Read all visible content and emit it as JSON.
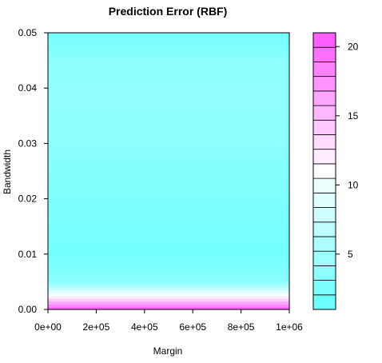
{
  "chart_data": {
    "type": "heatmap",
    "title": "Prediction Error (RBF)",
    "xlabel": "Margin",
    "ylabel": "Bandwidth",
    "xlim": [
      0,
      1000000
    ],
    "ylim": [
      0,
      0.05
    ],
    "x_ticks": [
      {
        "value": 0,
        "label": "0e+00"
      },
      {
        "value": 200000,
        "label": "2e+05"
      },
      {
        "value": 400000,
        "label": "4e+05"
      },
      {
        "value": 600000,
        "label": "6e+05"
      },
      {
        "value": 800000,
        "label": "8e+05"
      },
      {
        "value": 1000000,
        "label": "1e+06"
      }
    ],
    "y_ticks": [
      {
        "value": 0.0,
        "label": "0.00"
      },
      {
        "value": 0.01,
        "label": "0.01"
      },
      {
        "value": 0.02,
        "label": "0.02"
      },
      {
        "value": 0.03,
        "label": "0.03"
      },
      {
        "value": 0.04,
        "label": "0.04"
      },
      {
        "value": 0.05,
        "label": "0.05"
      }
    ],
    "colorbar": {
      "min": 1,
      "max": 21,
      "levels": 19,
      "low_color": "#66ffff",
      "mid_color": "#ffffff",
      "high_color": "#ff55ff",
      "ticks": [
        {
          "value": 5,
          "label": "5"
        },
        {
          "value": 10,
          "label": "10"
        },
        {
          "value": 15,
          "label": "15"
        },
        {
          "value": 20,
          "label": "20"
        }
      ]
    },
    "bandwidth_rows": [
      {
        "bandwidth": 0.0,
        "error": 21.0
      },
      {
        "bandwidth": 0.0005,
        "error": 19.0
      },
      {
        "bandwidth": 0.001,
        "error": 17.0
      },
      {
        "bandwidth": 0.0015,
        "error": 15.0
      },
      {
        "bandwidth": 0.002,
        "error": 13.0
      },
      {
        "bandwidth": 0.0025,
        "error": 11.0
      },
      {
        "bandwidth": 0.003,
        "error": 9.5
      },
      {
        "bandwidth": 0.0035,
        "error": 8.0
      },
      {
        "bandwidth": 0.004,
        "error": 6.5
      },
      {
        "bandwidth": 0.0045,
        "error": 5.0
      },
      {
        "bandwidth": 0.005,
        "error": 3.5
      },
      {
        "bandwidth": 0.01,
        "error": 2.0
      },
      {
        "bandwidth": 0.015,
        "error": 2.3
      },
      {
        "bandwidth": 0.02,
        "error": 2.7
      },
      {
        "bandwidth": 0.025,
        "error": 3.1
      },
      {
        "bandwidth": 0.03,
        "error": 3.5
      },
      {
        "bandwidth": 0.035,
        "error": 3.8
      },
      {
        "bandwidth": 0.04,
        "error": 3.9
      },
      {
        "bandwidth": 0.045,
        "error": 3.5
      },
      {
        "bandwidth": 0.05,
        "error": 2.0
      }
    ],
    "grid": false,
    "legend": "right"
  }
}
